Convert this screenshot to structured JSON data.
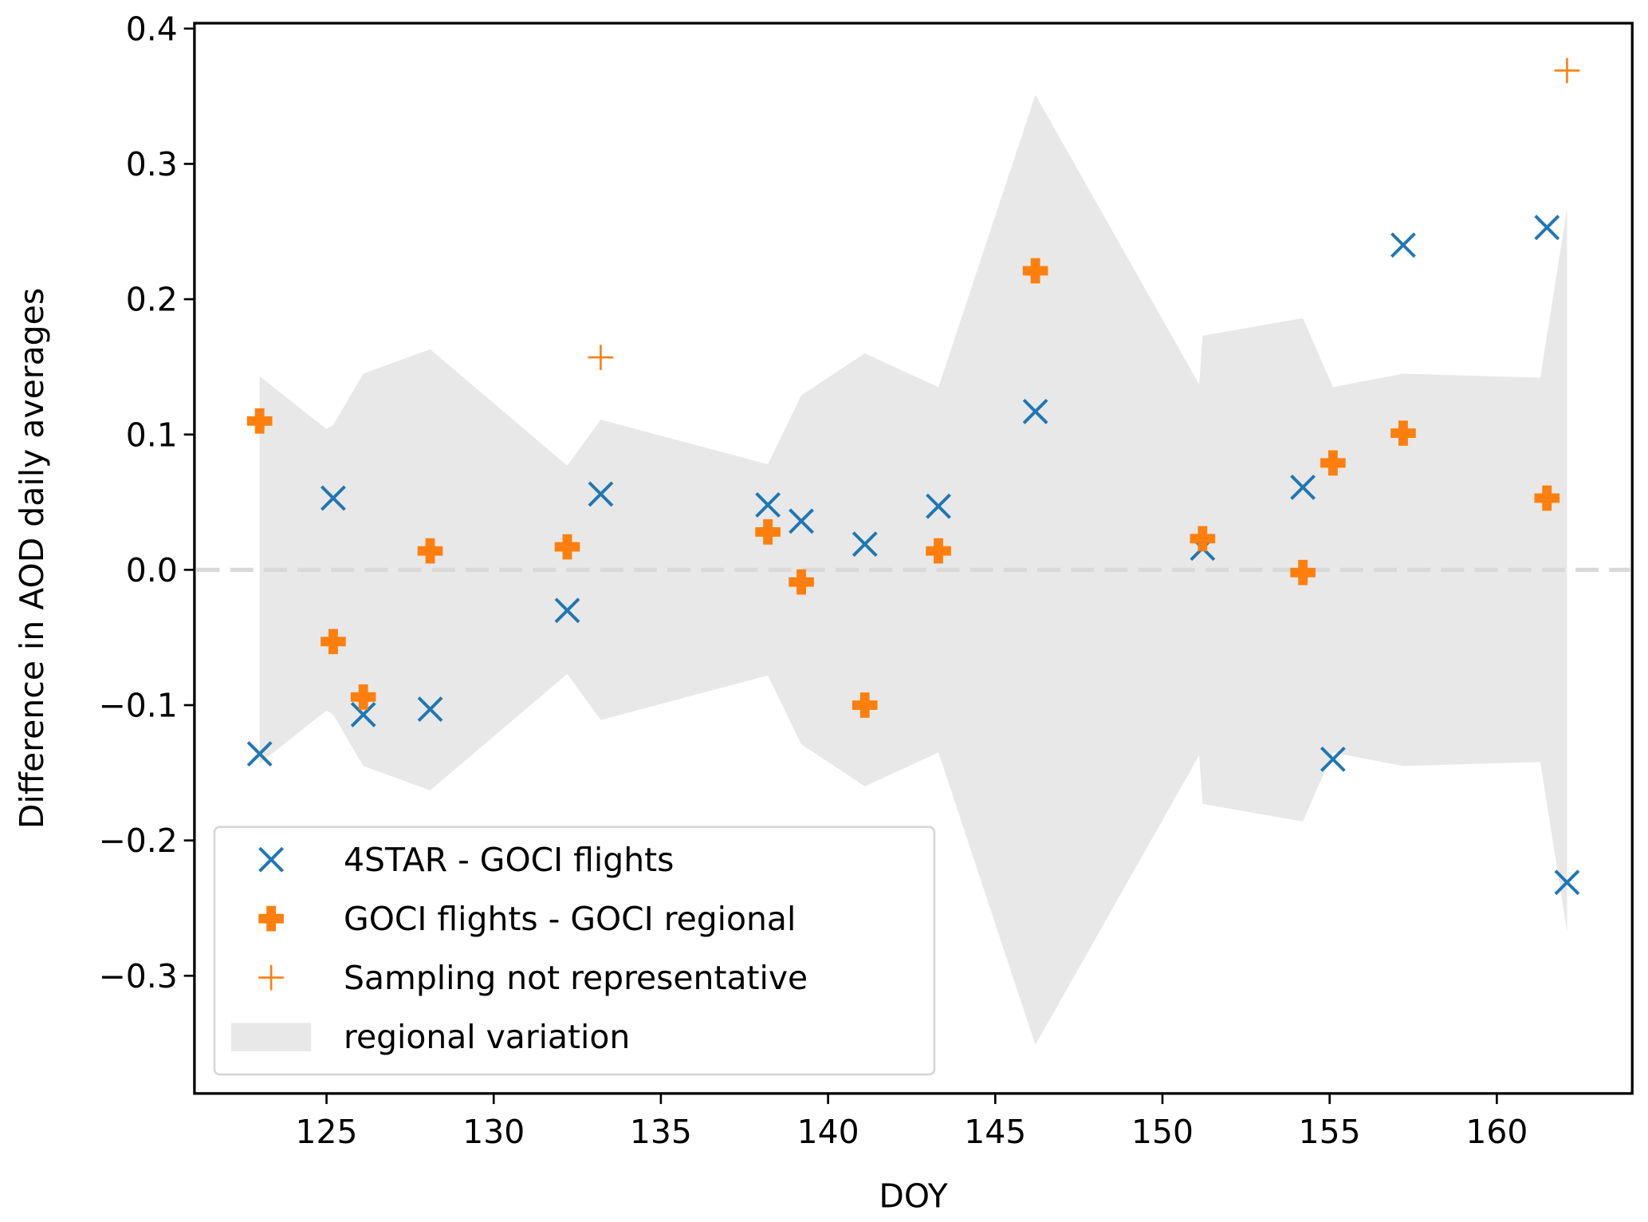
{
  "chart_data": {
    "type": "scatter",
    "title": "",
    "xlabel": "DOY",
    "ylabel": "Difference in AOD daily averages",
    "xlim": [
      121.05,
      164.05
    ],
    "ylim": [
      -0.387,
      0.404
    ],
    "xticks": [
      125,
      130,
      135,
      140,
      145,
      150,
      155,
      160
    ],
    "yticks": [
      -0.3,
      -0.2,
      -0.1,
      0.0,
      0.1,
      0.2,
      0.3,
      0.4
    ],
    "ytick_labels": [
      "−0.3",
      "−0.2",
      "−0.1",
      "0.0",
      "0.1",
      "0.2",
      "0.3",
      "0.4"
    ],
    "zero_line": {
      "y": 0,
      "style": "dashed",
      "color": "#d9d9d9"
    },
    "legend_placement": "lower-left",
    "series": [
      {
        "name": "4STAR - GOCI flights",
        "marker": "x",
        "color": "#1f77b4",
        "x": [
          123.0,
          125.2,
          126.1,
          128.1,
          132.2,
          133.2,
          138.2,
          139.2,
          141.1,
          143.3,
          146.2,
          151.2,
          154.2,
          155.1,
          157.2,
          161.5,
          162.1
        ],
        "y": [
          -0.136,
          0.053,
          -0.107,
          -0.103,
          -0.03,
          0.056,
          0.048,
          0.036,
          0.019,
          0.047,
          0.117,
          0.016,
          0.061,
          -0.14,
          0.24,
          0.253,
          -0.231
        ]
      },
      {
        "name": "GOCI flights - GOCI regional",
        "marker": "P",
        "color": "#ff7f0e",
        "x": [
          123.0,
          125.2,
          126.1,
          128.1,
          132.2,
          138.2,
          139.2,
          141.1,
          143.3,
          146.2,
          151.2,
          154.2,
          155.1,
          157.2,
          161.5
        ],
        "y": [
          0.11,
          -0.053,
          -0.094,
          0.014,
          0.017,
          0.028,
          -0.009,
          -0.1,
          0.014,
          0.221,
          0.023,
          -0.002,
          0.079,
          0.101,
          0.053
        ]
      },
      {
        "name": "Sampling not representative",
        "marker": "+",
        "color": "#ff7f0e",
        "x": [
          133.2,
          162.1
        ],
        "y": [
          0.157,
          0.369
        ]
      }
    ],
    "band": {
      "name": "regional variation",
      "color": "#e8e8e8",
      "x": [
        123.0,
        125.0,
        125.2,
        126.1,
        128.1,
        132.2,
        133.2,
        138.2,
        139.2,
        141.1,
        143.3,
        146.2,
        151.1,
        151.2,
        154.2,
        155.1,
        157.2,
        161.3,
        162.1
      ],
      "upper": [
        0.143,
        0.104,
        0.107,
        0.145,
        0.163,
        0.077,
        0.111,
        0.078,
        0.129,
        0.16,
        0.135,
        0.351,
        0.137,
        0.173,
        0.186,
        0.135,
        0.145,
        0.142,
        0.267
      ],
      "lower": [
        -0.143,
        -0.104,
        -0.107,
        -0.145,
        -0.163,
        -0.077,
        -0.111,
        -0.078,
        -0.129,
        -0.16,
        -0.135,
        -0.351,
        -0.137,
        -0.173,
        -0.186,
        -0.135,
        -0.145,
        -0.142,
        -0.267
      ]
    }
  }
}
